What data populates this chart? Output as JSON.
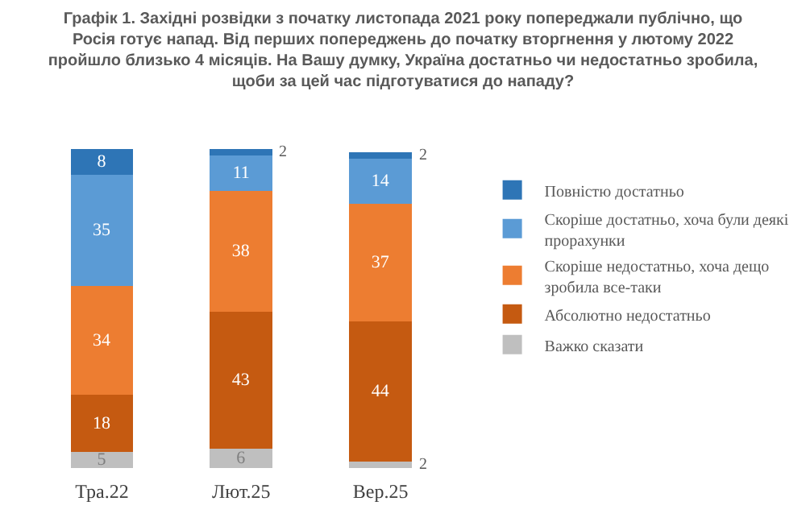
{
  "chart_data": {
    "type": "bar",
    "stacked": true,
    "data_labels": true,
    "tick_labels": "x",
    "legend": "right",
    "title": "Графік 1. Західні розвідки з початку листопада 2021 року попереджали публічно, що Росія готує напад. Від перших попереджень до початку вторгнення у лютому 2022 пройшло близько 4 місяців. На Вашу думку, Україна достатньо чи недостатньо зробила, щоби за цей час підготуватися до нападу?",
    "categories": [
      "Тра.22",
      "Лют.25",
      "Вер.25"
    ],
    "series": [
      {
        "name": "Важко сказати",
        "color": "#bfbfbf",
        "values": [
          5,
          6,
          2
        ]
      },
      {
        "name": "Абсолютно недостатньо",
        "color": "#c55a11",
        "values": [
          18,
          43,
          44
        ]
      },
      {
        "name": "Скоріше недостатньо, хоча дещо зробила все-таки",
        "color": "#ed7d31",
        "values": [
          34,
          38,
          37
        ]
      },
      {
        "name": "Скоріше достатньо, хоча були деякі прорахунки",
        "color": "#5b9bd5",
        "values": [
          35,
          11,
          14
        ]
      },
      {
        "name": "Повністю достатньо",
        "color": "#2e75b6",
        "values": [
          8,
          2,
          2
        ]
      }
    ]
  }
}
